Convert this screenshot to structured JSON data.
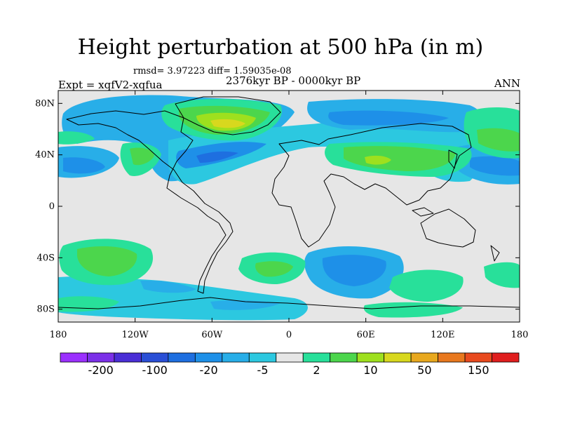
{
  "title": "Height perturbation at 500 hPa (in m)",
  "stats_text": "rmsd= 3.97223 diff= 1.59035e-08",
  "period_text": "2376kyr BP - 0000kyr BP",
  "experiment_text": "Expt = xqfV2-xqfua",
  "season_text": "ANN",
  "lat_ticks": [
    {
      "label": "80N",
      "lat": 80
    },
    {
      "label": "40N",
      "lat": 40
    },
    {
      "label": "0",
      "lat": 0
    },
    {
      "label": "40S",
      "lat": -40
    },
    {
      "label": "80S",
      "lat": -80
    }
  ],
  "lon_ticks": [
    {
      "label": "180",
      "lon": -180
    },
    {
      "label": "120W",
      "lon": -120
    },
    {
      "label": "60W",
      "lon": -60
    },
    {
      "label": "0",
      "lon": 0
    },
    {
      "label": "60E",
      "lon": 60
    },
    {
      "label": "120E",
      "lon": 120
    },
    {
      "label": "180",
      "lon": 180
    }
  ],
  "colorbar": {
    "colors": [
      "#9b30ff",
      "#7b30e8",
      "#4a2ed6",
      "#2a4fd6",
      "#1e6fe0",
      "#1e90e8",
      "#28aee8",
      "#2cc8e0",
      "#e6e6e6",
      "#28e09a",
      "#4cd64c",
      "#9ee01e",
      "#d8d81e",
      "#e8a81e",
      "#e8781e",
      "#e84a1e",
      "#e01e1e"
    ],
    "labels": [
      {
        "text": "-200",
        "slot": 1
      },
      {
        "text": "-100",
        "slot": 3
      },
      {
        "text": "-20",
        "slot": 5
      },
      {
        "text": "-5",
        "slot": 7
      },
      {
        "text": "2",
        "slot": 9
      },
      {
        "text": "10",
        "slot": 11
      },
      {
        "text": "50",
        "slot": 13
      },
      {
        "text": "150",
        "slot": 15
      }
    ]
  },
  "colors": {
    "ocean_background": "#e6e6e6",
    "coast": "#000000"
  }
}
